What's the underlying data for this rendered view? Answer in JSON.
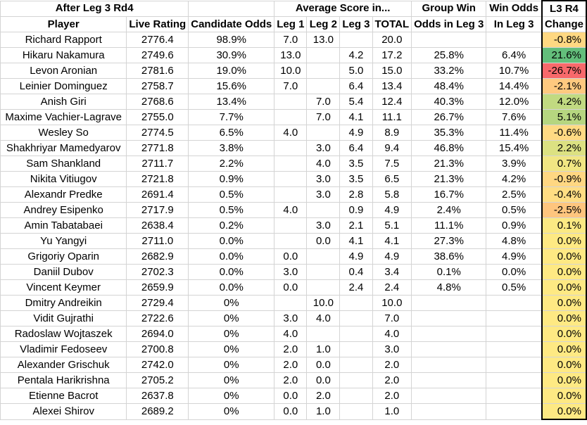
{
  "header": {
    "row1": {
      "group1": "After Leg 3 Rd4",
      "group2": "Average Score in...",
      "group3": "Group Win",
      "group4": "Win Odds",
      "group5": "L3 R4"
    },
    "row2": {
      "player": "Player",
      "live_rating": "Live Rating",
      "candidate_odds": "Candidate Odds",
      "leg1": "Leg 1",
      "leg2": "Leg 2",
      "leg3": "Leg 3",
      "total": "TOTAL",
      "group_win": "Odds in Leg 3",
      "win_odds": "In Leg 3",
      "change": "Change"
    }
  },
  "rows": [
    {
      "player": "Richard Rapport",
      "rating": "2776.4",
      "cand": "98.9%",
      "leg1": "7.0",
      "leg2": "13.0",
      "leg3": "",
      "total": "20.0",
      "group": "",
      "win": "",
      "change": "-0.8%",
      "color": "#ffd882"
    },
    {
      "player": "Hikaru Nakamura",
      "rating": "2749.6",
      "cand": "30.9%",
      "leg1": "13.0",
      "leg2": "",
      "leg3": "4.2",
      "total": "17.2",
      "group": "25.8%",
      "win": "6.4%",
      "change": "21.6%",
      "color": "#63be7b"
    },
    {
      "player": "Levon Aronian",
      "rating": "2781.6",
      "cand": "19.0%",
      "leg1": "10.0",
      "leg2": "",
      "leg3": "5.0",
      "total": "15.0",
      "group": "33.2%",
      "win": "10.7%",
      "change": "-26.7%",
      "color": "#f8696b"
    },
    {
      "player": "Leinier Dominguez",
      "rating": "2758.7",
      "cand": "15.6%",
      "leg1": "7.0",
      "leg2": "",
      "leg3": "6.4",
      "total": "13.4",
      "group": "48.4%",
      "win": "14.4%",
      "change": "-2.1%",
      "color": "#fec97f"
    },
    {
      "player": "Anish Giri",
      "rating": "2768.6",
      "cand": "13.4%",
      "leg1": "",
      "leg2": "7.0",
      "leg3": "5.4",
      "total": "12.4",
      "group": "40.3%",
      "win": "12.0%",
      "change": "4.2%",
      "color": "#c1da81"
    },
    {
      "player": "Maxime Vachier-Lagrave",
      "rating": "2755.0",
      "cand": "7.7%",
      "leg1": "",
      "leg2": "7.0",
      "leg3": "4.1",
      "total": "11.1",
      "group": "26.7%",
      "win": "7.6%",
      "change": "5.1%",
      "color": "#b6d680"
    },
    {
      "player": "Wesley So",
      "rating": "2774.5",
      "cand": "6.5%",
      "leg1": "4.0",
      "leg2": "",
      "leg3": "4.9",
      "total": "8.9",
      "group": "35.3%",
      "win": "11.4%",
      "change": "-0.6%",
      "color": "#ffda83"
    },
    {
      "player": "Shakhriyar Mamedyarov",
      "rating": "2771.8",
      "cand": "3.8%",
      "leg1": "",
      "leg2": "3.0",
      "leg3": "6.4",
      "total": "9.4",
      "group": "46.8%",
      "win": "15.4%",
      "change": "2.2%",
      "color": "#dce182"
    },
    {
      "player": "Sam Shankland",
      "rating": "2711.7",
      "cand": "2.2%",
      "leg1": "",
      "leg2": "4.0",
      "leg3": "3.5",
      "total": "7.5",
      "group": "21.3%",
      "win": "3.9%",
      "change": "0.7%",
      "color": "#f1e683"
    },
    {
      "player": "Nikita Vitiugov",
      "rating": "2721.8",
      "cand": "0.9%",
      "leg1": "",
      "leg2": "3.0",
      "leg3": "3.5",
      "total": "6.5",
      "group": "21.3%",
      "win": "4.2%",
      "change": "-0.9%",
      "color": "#ffd782"
    },
    {
      "player": "Alexandr Predke",
      "rating": "2691.4",
      "cand": "0.5%",
      "leg1": "",
      "leg2": "3.0",
      "leg3": "2.8",
      "total": "5.8",
      "group": "16.7%",
      "win": "2.5%",
      "change": "-0.4%",
      "color": "#ffdd83"
    },
    {
      "player": "Andrey Esipenko",
      "rating": "2717.9",
      "cand": "0.5%",
      "leg1": "4.0",
      "leg2": "",
      "leg3": "0.9",
      "total": "4.9",
      "group": "2.4%",
      "win": "0.5%",
      "change": "-2.5%",
      "color": "#fec57e"
    },
    {
      "player": "Amin Tabatabaei",
      "rating": "2638.4",
      "cand": "0.2%",
      "leg1": "",
      "leg2": "3.0",
      "leg3": "2.1",
      "total": "5.1",
      "group": "11.1%",
      "win": "0.9%",
      "change": "0.1%",
      "color": "#fbe983"
    },
    {
      "player": "Yu Yangyi",
      "rating": "2711.0",
      "cand": "0.0%",
      "leg1": "",
      "leg2": "0.0",
      "leg3": "4.1",
      "total": "4.1",
      "group": "27.3%",
      "win": "4.8%",
      "change": "0.0%",
      "color": "#fee983"
    },
    {
      "player": "Grigoriy Oparin",
      "rating": "2682.9",
      "cand": "0.0%",
      "leg1": "0.0",
      "leg2": "",
      "leg3": "4.9",
      "total": "4.9",
      "group": "38.6%",
      "win": "4.9%",
      "change": "0.0%",
      "color": "#fee983"
    },
    {
      "player": "Daniil Dubov",
      "rating": "2702.3",
      "cand": "0.0%",
      "leg1": "3.0",
      "leg2": "",
      "leg3": "0.4",
      "total": "3.4",
      "group": "0.1%",
      "win": "0.0%",
      "change": "0.0%",
      "color": "#fee983"
    },
    {
      "player": "Vincent Keymer",
      "rating": "2659.9",
      "cand": "0.0%",
      "leg1": "0.0",
      "leg2": "",
      "leg3": "2.4",
      "total": "2.4",
      "group": "4.8%",
      "win": "0.5%",
      "change": "0.0%",
      "color": "#fee983"
    },
    {
      "player": "Dmitry Andreikin",
      "rating": "2729.4",
      "cand": "0%",
      "leg1": "",
      "leg2": "10.0",
      "leg3": "",
      "total": "10.0",
      "group": "",
      "win": "",
      "change": "0.0%",
      "color": "#fee983"
    },
    {
      "player": "Vidit Gujrathi",
      "rating": "2722.6",
      "cand": "0%",
      "leg1": "3.0",
      "leg2": "4.0",
      "leg3": "",
      "total": "7.0",
      "group": "",
      "win": "",
      "change": "0.0%",
      "color": "#fee983"
    },
    {
      "player": "Radoslaw Wojtaszek",
      "rating": "2694.0",
      "cand": "0%",
      "leg1": "4.0",
      "leg2": "",
      "leg3": "",
      "total": "4.0",
      "group": "",
      "win": "",
      "change": "0.0%",
      "color": "#fee983"
    },
    {
      "player": "Vladimir Fedoseev",
      "rating": "2700.8",
      "cand": "0%",
      "leg1": "2.0",
      "leg2": "1.0",
      "leg3": "",
      "total": "3.0",
      "group": "",
      "win": "",
      "change": "0.0%",
      "color": "#fee983"
    },
    {
      "player": "Alexander Grischuk",
      "rating": "2742.0",
      "cand": "0%",
      "leg1": "2.0",
      "leg2": "0.0",
      "leg3": "",
      "total": "2.0",
      "group": "",
      "win": "",
      "change": "0.0%",
      "color": "#fee983"
    },
    {
      "player": "Pentala Harikrishna",
      "rating": "2705.2",
      "cand": "0%",
      "leg1": "2.0",
      "leg2": "0.0",
      "leg3": "",
      "total": "2.0",
      "group": "",
      "win": "",
      "change": "0.0%",
      "color": "#fee983"
    },
    {
      "player": "Etienne Bacrot",
      "rating": "2637.8",
      "cand": "0%",
      "leg1": "0.0",
      "leg2": "2.0",
      "leg3": "",
      "total": "2.0",
      "group": "",
      "win": "",
      "change": "0.0%",
      "color": "#fee983"
    },
    {
      "player": "Alexei Shirov",
      "rating": "2689.2",
      "cand": "0%",
      "leg1": "0.0",
      "leg2": "1.0",
      "leg3": "",
      "total": "1.0",
      "group": "",
      "win": "",
      "change": "0.0%",
      "color": "#fee983"
    }
  ]
}
